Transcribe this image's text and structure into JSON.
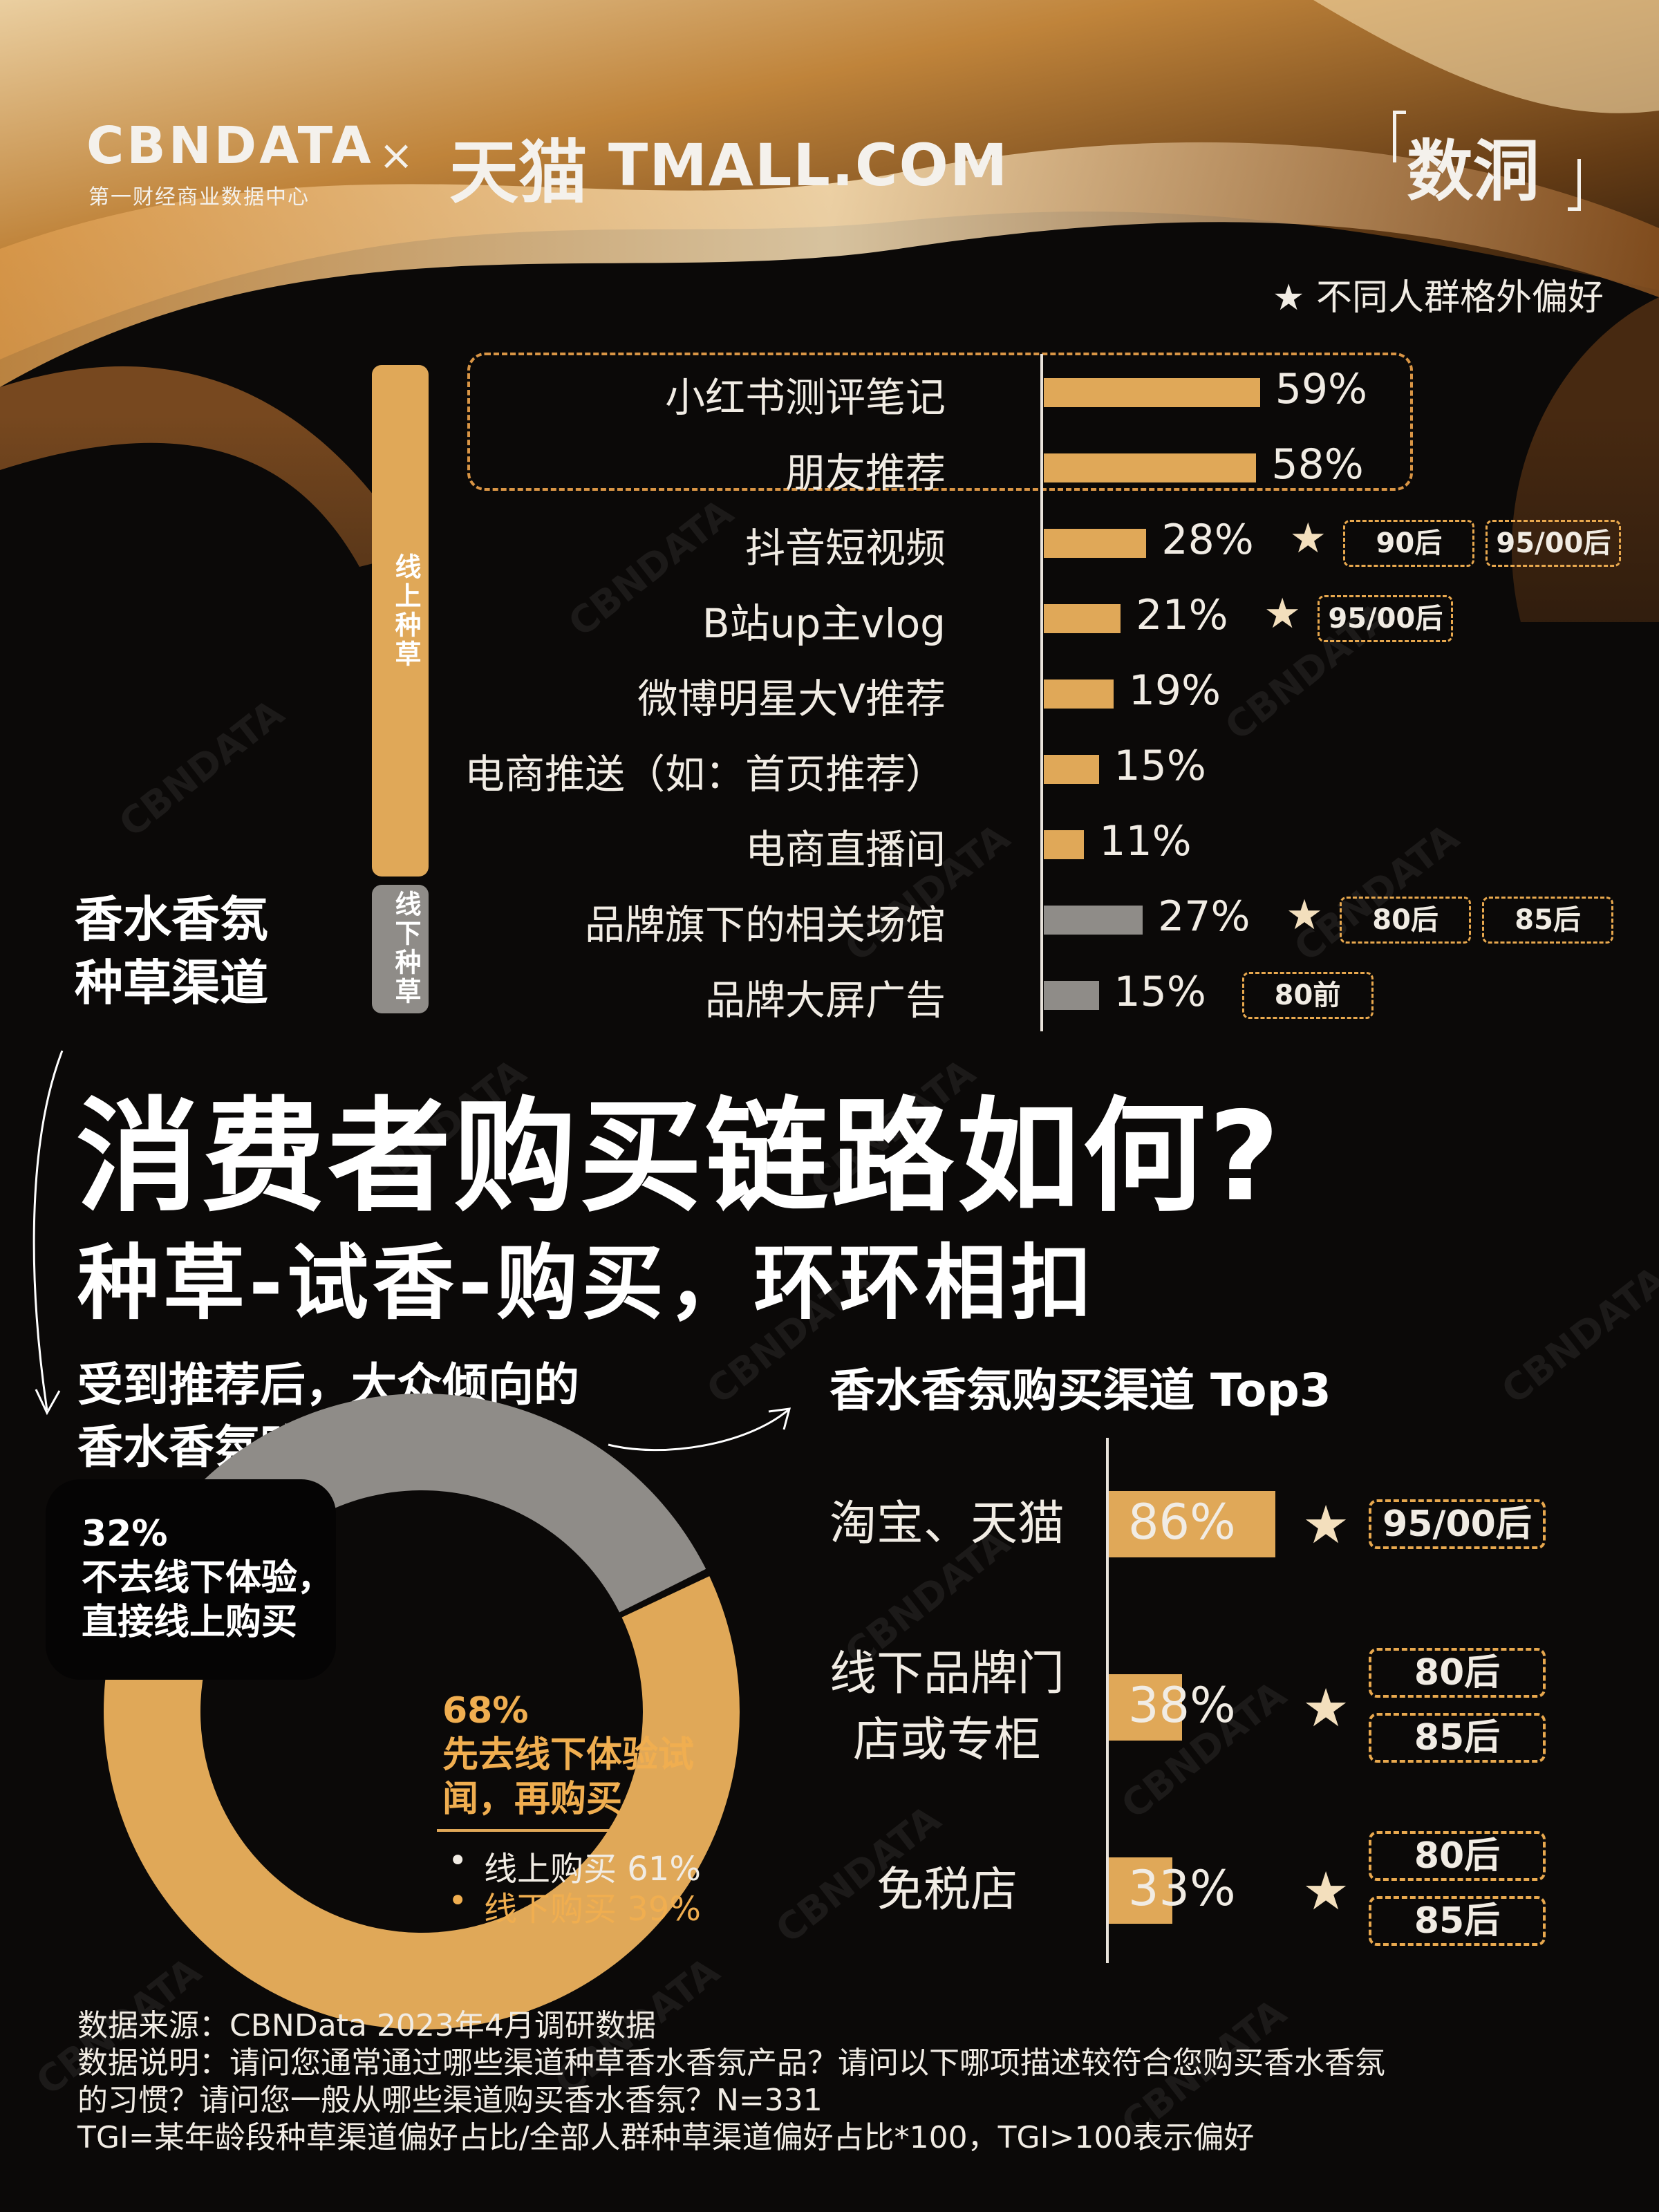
{
  "header": {
    "logo_cbndata": "CBNDATA",
    "logo_cbndata_sub": "第一财经商业数据中心",
    "logo_cross": "×",
    "logo_tmall_cn": "天猫",
    "logo_tmall_en": "TMALL.COM",
    "logo_shudong": "数洞"
  },
  "legend_note": "★ 不同人群格外偏好",
  "colors": {
    "accent": "#e0a858",
    "offline_gray": "#8f8c88",
    "background": "#0b0908",
    "tag_border": "#e8a84e"
  },
  "seeding": {
    "side_title_line1": "香水香氛",
    "side_title_line2": "种草渠道",
    "group_online": "线上种草",
    "group_offline": "线下种草",
    "items": [
      {
        "label": "小红书测评笔记",
        "pct_label": "59%",
        "star": false,
        "tags": []
      },
      {
        "label": "朋友推荐",
        "pct_label": "58%",
        "star": false,
        "tags": []
      },
      {
        "label": "抖音短视频",
        "pct_label": "28%",
        "star": true,
        "tags": [
          "90后",
          "95/00后"
        ]
      },
      {
        "label": "B站up主vlog",
        "pct_label": "21%",
        "star": true,
        "tags": [
          "95/00后"
        ]
      },
      {
        "label": "微博明星大V推荐",
        "pct_label": "19%",
        "star": false,
        "tags": []
      },
      {
        "label": "电商推送（如：首页推荐）",
        "pct_label": "15%",
        "star": false,
        "tags": []
      },
      {
        "label": "电商直播间",
        "pct_label": "11%",
        "star": false,
        "tags": []
      },
      {
        "label": "品牌旗下的相关场馆",
        "pct_label": "27%",
        "star": true,
        "tags": [
          "80后",
          "85后"
        ]
      },
      {
        "label": "品牌大屏广告",
        "pct_label": "15%",
        "star": false,
        "tags": [
          "80前"
        ]
      }
    ]
  },
  "titles": {
    "main": "消费者购买链路如何?",
    "sub": "种草-试香-购买，环环相扣"
  },
  "donut_section": {
    "title_line1": "受到推荐后，大众倾向的",
    "title_line2": "香水香氛购买方式",
    "callout_pct": "32%",
    "callout_line1": "不去线下体验，",
    "callout_line2": "直接线上购买",
    "orange_pct": "68%",
    "orange_line1": "先去线下体验试",
    "orange_line2": "闻，再购买",
    "bullet_online": "线上购买 61%",
    "bullet_offline": "线下购买 39%"
  },
  "channel_section": {
    "title": "香水香氛购买渠道 Top3",
    "items": [
      {
        "label_lines": [
          "淘宝、天猫"
        ],
        "pct_label": "86%",
        "tags": [
          "95/00后"
        ]
      },
      {
        "label_lines": [
          "线下品牌门",
          "店或专柜"
        ],
        "pct_label": "38%",
        "tags": [
          "80后",
          "85后"
        ]
      },
      {
        "label_lines": [
          "免税店"
        ],
        "pct_label": "33%",
        "tags": [
          "80后",
          "85后"
        ]
      }
    ]
  },
  "notes": {
    "line1": "数据来源：CBNData 2023年4月调研数据",
    "line2": "数据说明：请问您通常通过哪些渠道种草香水香氛产品？请问以下哪项描述较符合您购买香水香氛",
    "line3": "的习惯？请问您一般从哪些渠道购买香水香氛？N=331",
    "line4": "TGI=某年龄段种草渠道偏好占比/全部人群种草渠道偏好占比*100，TGI>100表示偏好"
  },
  "watermark": {
    "main": "CBNDATA",
    "sub": "第一财经商业数据中心"
  },
  "chart_data": [
    {
      "type": "bar",
      "orientation": "horizontal",
      "categories": [
        "小红书测评笔记",
        "朋友推荐",
        "抖音短视频",
        "B站up主vlog",
        "微博明星大V推荐",
        "电商推送（如：首页推荐）",
        "电商直播间",
        "品牌旗下的相关场馆",
        "品牌大屏广告"
      ],
      "values": [
        59,
        58,
        28,
        21,
        19,
        15,
        11,
        27,
        15
      ],
      "groups": [
        "线上种草",
        "线上种草",
        "线上种草",
        "线上种草",
        "线上种草",
        "线上种草",
        "线上种草",
        "线下种草",
        "线下种草"
      ],
      "unit": "%",
      "title": "香水香氛种草渠道"
    },
    {
      "type": "pie",
      "categories": [
        "不去线下体验，直接线上购买",
        "先去线下体验试闻，再购买"
      ],
      "values": [
        32,
        68
      ],
      "sub_breakdown_of_68": {
        "categories": [
          "线上购买",
          "线下购买"
        ],
        "values": [
          61,
          39
        ]
      },
      "unit": "%",
      "title": "受到推荐后，大众倾向的香水香氛购买方式"
    },
    {
      "type": "bar",
      "orientation": "horizontal",
      "categories": [
        "淘宝、天猫",
        "线下品牌门店或专柜",
        "免税店"
      ],
      "values": [
        86,
        38,
        33
      ],
      "unit": "%",
      "title": "香水香氛购买渠道 Top3"
    }
  ]
}
